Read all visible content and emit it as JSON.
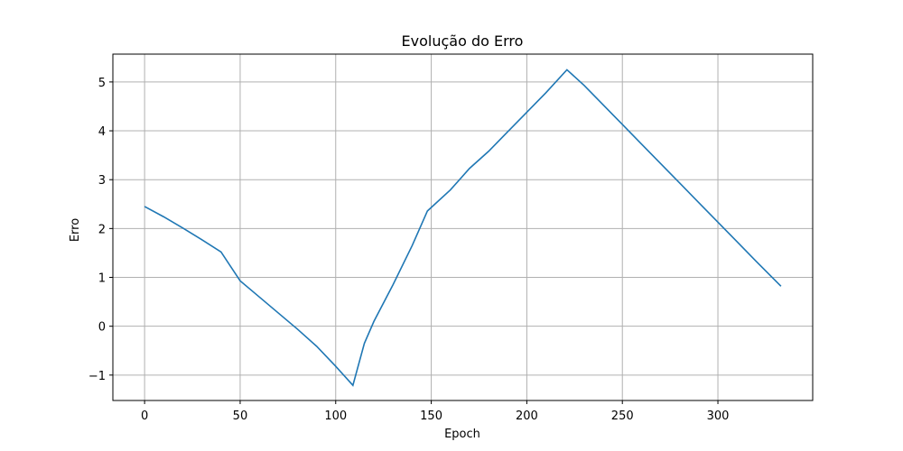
{
  "chart_data": {
    "type": "line",
    "title": "Evolução do Erro",
    "xlabel": "Epoch",
    "ylabel": "Erro",
    "xlim": [
      -16.6,
      349.6
    ],
    "ylim": [
      -1.52,
      5.57
    ],
    "xticks": [
      0,
      50,
      100,
      150,
      200,
      250,
      300
    ],
    "yticks": [
      -1,
      0,
      1,
      2,
      3,
      4,
      5
    ],
    "ytick_labels": [
      "−1",
      "0",
      "1",
      "2",
      "3",
      "4",
      "5"
    ],
    "grid": true,
    "series": [
      {
        "color": "#1f77b4",
        "points": [
          [
            0,
            2.45
          ],
          [
            10,
            2.24
          ],
          [
            20,
            2.01
          ],
          [
            30,
            1.77
          ],
          [
            40,
            1.52
          ],
          [
            50,
            0.93
          ],
          [
            60,
            0.6
          ],
          [
            70,
            0.27
          ],
          [
            80,
            -0.06
          ],
          [
            90,
            -0.41
          ],
          [
            100,
            -0.82
          ],
          [
            109,
            -1.21
          ],
          [
            115,
            -0.35
          ],
          [
            120,
            0.1
          ],
          [
            130,
            0.85
          ],
          [
            140,
            1.65
          ],
          [
            148,
            2.36
          ],
          [
            160,
            2.79
          ],
          [
            170,
            3.23
          ],
          [
            180,
            3.58
          ],
          [
            190,
            3.98
          ],
          [
            200,
            4.38
          ],
          [
            210,
            4.78
          ],
          [
            221,
            5.25
          ],
          [
            230,
            4.93
          ],
          [
            240,
            4.53
          ],
          [
            250,
            4.13
          ],
          [
            260,
            3.73
          ],
          [
            270,
            3.33
          ],
          [
            280,
            2.93
          ],
          [
            290,
            2.53
          ],
          [
            300,
            2.13
          ],
          [
            310,
            1.73
          ],
          [
            320,
            1.33
          ],
          [
            333,
            0.82
          ]
        ]
      }
    ]
  }
}
